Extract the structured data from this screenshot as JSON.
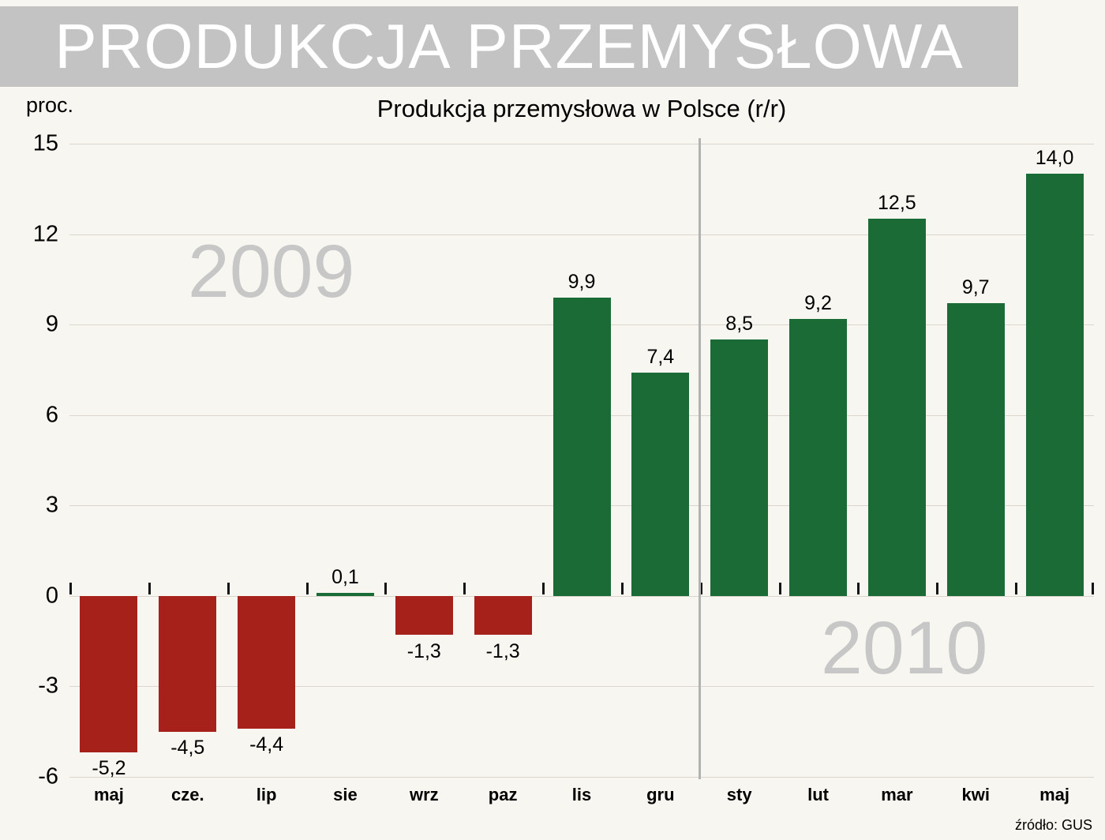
{
  "header": {
    "title": "PRODUKCJA PRZEMYSŁOWA"
  },
  "chart": {
    "title": "Produkcja przemysłowa w Polsce (r/r)",
    "unit_label": "proc.",
    "year_left": "2009",
    "year_right": "2010",
    "source": "źródło: GUS"
  },
  "chart_data": {
    "type": "bar",
    "title": "Produkcja przemysłowa w Polsce (r/r)",
    "ylabel": "proc.",
    "categories": [
      "maj",
      "cze.",
      "lip",
      "sie",
      "wrz",
      "paz",
      "lis",
      "gru",
      "sty",
      "lut",
      "mar",
      "kwi",
      "maj"
    ],
    "values": [
      -5.2,
      -4.5,
      -4.4,
      0.1,
      -1.3,
      -1.3,
      9.9,
      7.4,
      8.5,
      9.2,
      12.5,
      9.7,
      14.0
    ],
    "labels": [
      "-5,2",
      "-4,5",
      "-4,4",
      "0,1",
      "-1,3",
      "-1,3",
      "9,9",
      "7,4",
      "8,5",
      "9,2",
      "12,5",
      "9,7",
      "14,0"
    ],
    "ylim": [
      -6,
      15
    ],
    "yticks": [
      {
        "v": 15,
        "label": "15"
      },
      {
        "v": 12,
        "label": "12"
      },
      {
        "v": 9,
        "label": "9"
      },
      {
        "v": 6,
        "label": "6"
      },
      {
        "v": 3,
        "label": "3"
      },
      {
        "v": 0,
        "label": "0"
      },
      {
        "v": -3,
        "label": "-3"
      },
      {
        "v": -6,
        "label": "-6"
      }
    ],
    "grid": true,
    "legend": false,
    "colors": {
      "positive": "#1a6b35",
      "negative": "#a6211a",
      "background": "#f8f6f0",
      "banner": "#c3c3c3",
      "watermark": "#c7c7c7"
    },
    "divider_after_index": 7,
    "year_groups": [
      {
        "label": "2009",
        "from": 0,
        "to": 7
      },
      {
        "label": "2010",
        "from": 8,
        "to": 12
      }
    ]
  }
}
